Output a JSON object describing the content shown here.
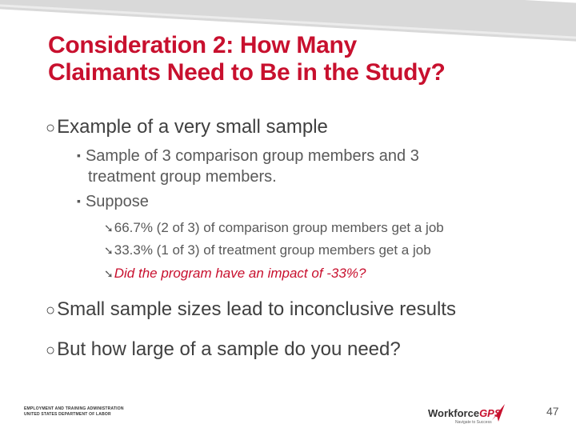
{
  "title": {
    "line1": "Consideration 2: How Many",
    "line2": "Claimants Need to Be in the Study?"
  },
  "bullets": {
    "level1_glyph": "¡",
    "level2_glyph": "}",
    "level3_glyph": "ê",
    "item1": "Example of a very small sample",
    "item1_sub1_line1": "Sample of 3 comparison group members and 3",
    "item1_sub1_line2": "treatment group members.",
    "item1_sub2": "Suppose",
    "item1_sub2_a": "66.7% (2 of 3) of comparison group members get a job",
    "item1_sub2_b": "33.3% (1 of 3) of treatment group members get a job",
    "item1_sub2_c": "Did the program have an impact of -33%?",
    "item2": "Small sample sizes lead to inconclusive results",
    "item3": "But how large of a sample do you need?"
  },
  "footer": {
    "agency_line1": "EMPLOYMENT AND TRAINING ADMINISTRATION",
    "agency_line2": "UNITED STATES DEPARTMENT OF LABOR",
    "logo_main": "Workforce",
    "logo_gps": "GPS",
    "logo_sub": "Navigate to Success",
    "page_number": "47"
  },
  "colors": {
    "title": "#c8102e",
    "body_text": "#404040",
    "emphasis": "#c8102e"
  }
}
